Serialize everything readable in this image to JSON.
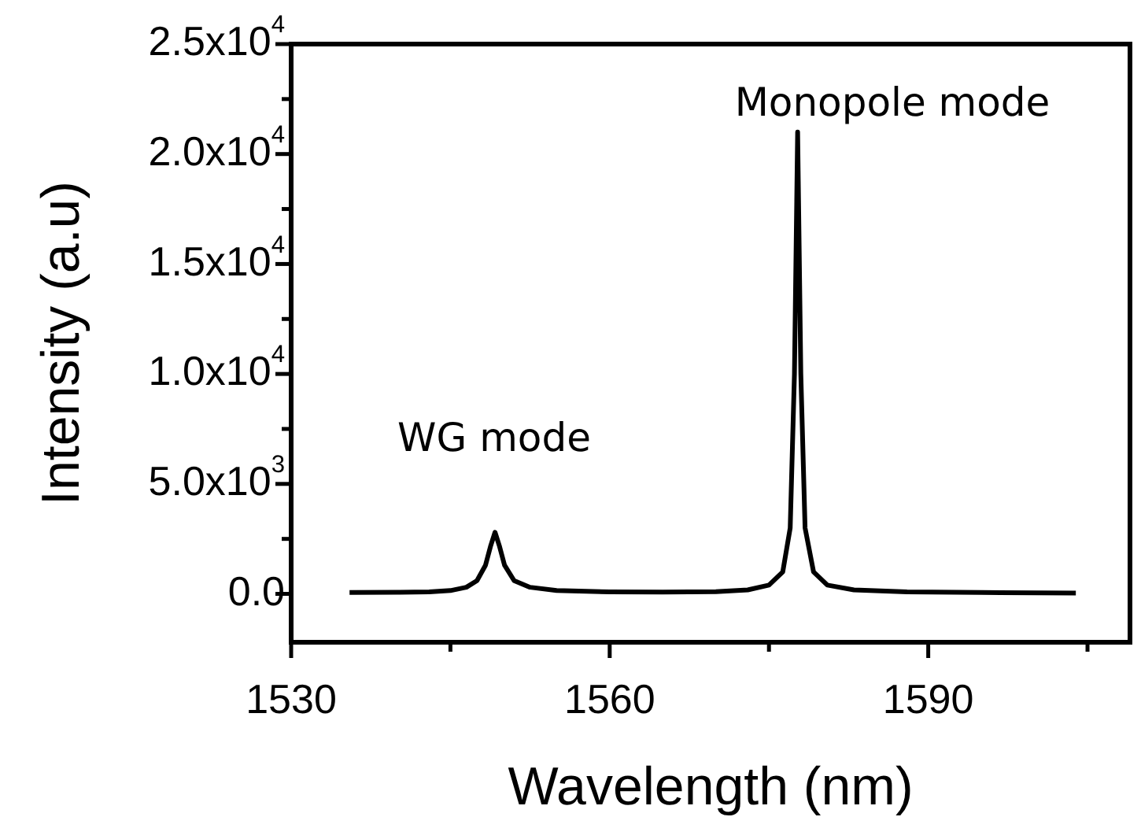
{
  "chart_data": {
    "type": "line",
    "xlabel": "Wavelength (nm)",
    "ylabel": "Intensity (a.u)",
    "x": [
      1535.5,
      1540,
      1543,
      1545,
      1546.5,
      1547.5,
      1548.3,
      1548.8,
      1549.2,
      1549.6,
      1550.1,
      1551,
      1552.5,
      1555,
      1560,
      1565,
      1570,
      1573,
      1575,
      1576.3,
      1577,
      1577.4,
      1577.7,
      1578,
      1578.4,
      1579.2,
      1580.5,
      1583,
      1588,
      1595,
      1603.9
    ],
    "series": [
      {
        "color": "#000000",
        "values": [
          60,
          70,
          90,
          150,
          300,
          600,
          1300,
          2200,
          2800,
          2200,
          1300,
          600,
          300,
          150,
          90,
          80,
          100,
          180,
          400,
          1000,
          3000,
          10000,
          21000,
          10000,
          3000,
          1000,
          400,
          180,
          90,
          60,
          40
        ]
      }
    ],
    "xlim": [
      1530,
      1609
    ],
    "ylim": [
      -2200,
      25000
    ],
    "xticks": [
      1530,
      {
        "value": 1545,
        "label": null
      },
      1560,
      {
        "value": 1575,
        "label": null
      },
      1590,
      {
        "value": 1605,
        "label": null
      }
    ],
    "yticks": [
      {
        "value": 0,
        "label": "0.0"
      },
      {
        "value": 2500,
        "label": null
      },
      {
        "value": 5000,
        "label": "5.0x10$^{3}$"
      },
      {
        "value": 7500,
        "label": null
      },
      {
        "value": 10000,
        "label": "1.0x10$^{4}$"
      },
      {
        "value": 12500,
        "label": null
      },
      {
        "value": 15000,
        "label": "1.5x10$^{4}$"
      },
      {
        "value": 17500,
        "label": null
      },
      {
        "value": 20000,
        "label": "2.0x10$^{4}$"
      },
      {
        "value": 22500,
        "label": null
      },
      {
        "value": 25000,
        "label": "2.5x10$^{4}$"
      }
    ],
    "annotations": [
      "WG mode",
      "Monopole mode"
    ],
    "line_style": "solid"
  }
}
